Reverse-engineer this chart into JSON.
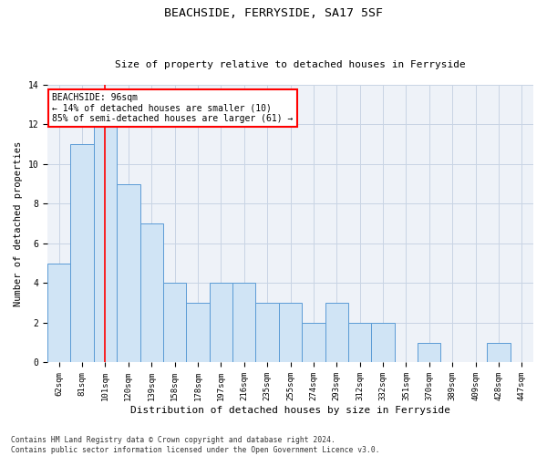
{
  "title": "BEACHSIDE, FERRYSIDE, SA17 5SF",
  "subtitle": "Size of property relative to detached houses in Ferryside",
  "xlabel": "Distribution of detached houses by size in Ferryside",
  "ylabel": "Number of detached properties",
  "categories": [
    "62sqm",
    "81sqm",
    "101sqm",
    "120sqm",
    "139sqm",
    "158sqm",
    "178sqm",
    "197sqm",
    "216sqm",
    "235sqm",
    "255sqm",
    "274sqm",
    "293sqm",
    "312sqm",
    "332sqm",
    "351sqm",
    "370sqm",
    "389sqm",
    "409sqm",
    "428sqm",
    "447sqm"
  ],
  "values": [
    5,
    11,
    12,
    9,
    7,
    4,
    3,
    4,
    4,
    3,
    3,
    2,
    3,
    2,
    2,
    0,
    1,
    0,
    0,
    1,
    0
  ],
  "bar_color": "#d0e4f5",
  "bar_edge_color": "#5b9bd5",
  "red_line_x": 2,
  "annotation_text": "BEACHSIDE: 96sqm\n← 14% of detached houses are smaller (10)\n85% of semi-detached houses are larger (61) →",
  "annotation_box_color": "white",
  "annotation_box_edge_color": "red",
  "ylim": [
    0,
    14
  ],
  "yticks": [
    0,
    2,
    4,
    6,
    8,
    10,
    12,
    14
  ],
  "footnote": "Contains HM Land Registry data © Crown copyright and database right 2024.\nContains public sector information licensed under the Open Government Licence v3.0.",
  "background_color": "#eef2f8",
  "grid_color": "#c8d4e4",
  "title_fontsize": 9.5,
  "subtitle_fontsize": 8,
  "tick_fontsize": 6.5,
  "ylabel_fontsize": 7.5,
  "xlabel_fontsize": 8,
  "annotation_fontsize": 7,
  "footnote_fontsize": 5.8
}
